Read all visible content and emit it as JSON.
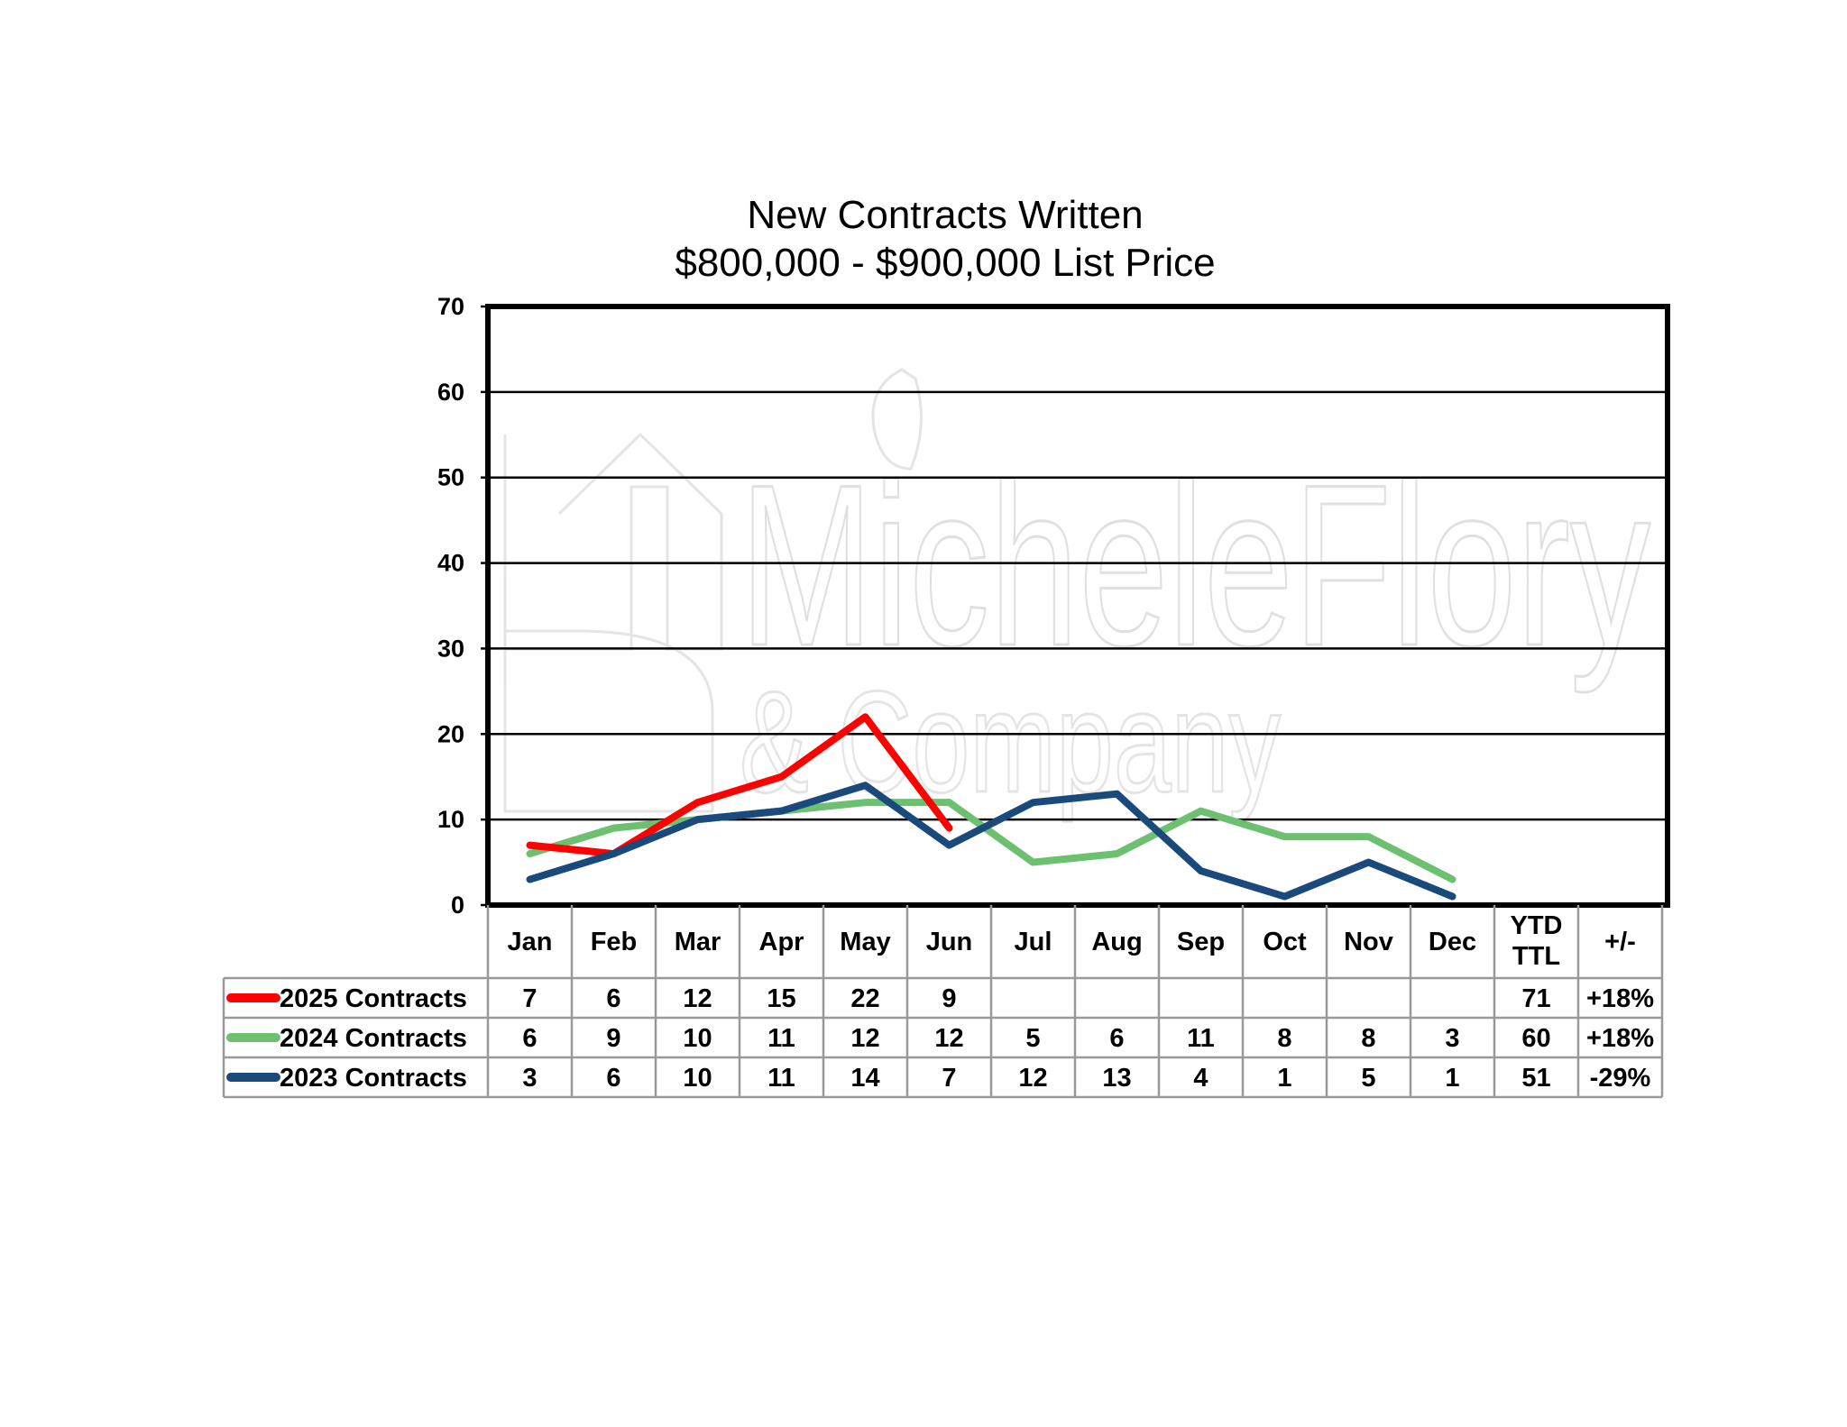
{
  "chart_data": {
    "type": "line",
    "title": "New Contracts Written",
    "subtitle": "$800,000 - $900,000 List Price",
    "ylim": [
      0,
      70
    ],
    "yticks": [
      0,
      10,
      20,
      30,
      40,
      50,
      60,
      70
    ],
    "grid": true,
    "categories": [
      "Jan",
      "Feb",
      "Mar",
      "Apr",
      "May",
      "Jun",
      "Jul",
      "Aug",
      "Sep",
      "Oct",
      "Nov",
      "Dec"
    ],
    "table_headers": {
      "ytd_line1": "YTD",
      "ytd_line2": "TTL",
      "change": "+/-"
    },
    "series": [
      {
        "name": "2025 Contracts",
        "color": "#ff0000",
        "values": [
          7,
          6,
          12,
          15,
          22,
          9,
          null,
          null,
          null,
          null,
          null,
          null
        ],
        "ytd": "71",
        "change": "+18%"
      },
      {
        "name": "2024 Contracts",
        "color": "#6cc070",
        "values": [
          6,
          9,
          10,
          11,
          12,
          12,
          5,
          6,
          11,
          8,
          8,
          3
        ],
        "ytd": "60",
        "change": "+18%"
      },
      {
        "name": "2023 Contracts",
        "color": "#1a4a7c",
        "values": [
          3,
          6,
          10,
          11,
          14,
          7,
          12,
          13,
          4,
          1,
          5,
          1
        ],
        "ytd": "51",
        "change": "-29%"
      }
    ]
  },
  "watermark": {
    "line1": "MicheleFlory",
    "line2": "& Company"
  }
}
